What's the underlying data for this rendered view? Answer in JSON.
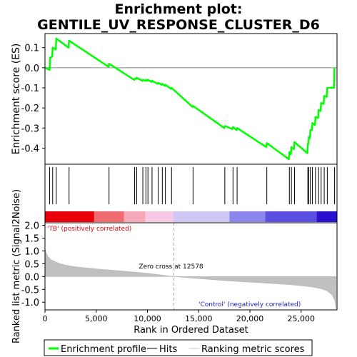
{
  "title_line1": "Enrichment plot:",
  "title_line2": "GENTILE_UV_RESPONSE_CLUSTER_D6",
  "chart_data": [
    {
      "type": "line",
      "panel": "enrichment",
      "ylabel": "Enrichment score (ES)",
      "xlim": [
        0,
        28500
      ],
      "ylim": [
        -0.48,
        0.17
      ],
      "yticks": [
        0.1,
        0.0,
        -0.1,
        -0.2,
        -0.3,
        -0.4
      ],
      "ytick_labels": [
        "0.1",
        "0.0",
        "-0.1",
        "-0.2",
        "-0.3",
        "-0.4"
      ],
      "zero_line": true,
      "series": [
        {
          "name": "Enrichment profile",
          "color": "#00ff00",
          "x": [
            0,
            450,
            500,
            700,
            750,
            1050,
            1100,
            2300,
            2350,
            6200,
            6250,
            8700,
            8750,
            8900,
            8950,
            9500,
            9550,
            9800,
            9850,
            10000,
            10050,
            10400,
            10450,
            11000,
            11050,
            11400,
            11450,
            11700,
            11750,
            12300,
            12350,
            14400,
            14450,
            17500,
            17550,
            18300,
            18350,
            18700,
            18750,
            21600,
            21650,
            23800,
            23850,
            24000,
            24050,
            24300,
            24350,
            25600,
            25650,
            25700,
            25750,
            25850,
            25900,
            26050,
            26100,
            26350,
            26400,
            26650,
            26700,
            26900,
            26950,
            27200,
            27250,
            27500,
            27550,
            28200,
            28250
          ],
          "y": [
            0.0,
            -0.01,
            0.05,
            0.055,
            0.1,
            0.09,
            0.145,
            0.1,
            0.135,
            0.005,
            0.02,
            -0.06,
            -0.055,
            -0.055,
            -0.05,
            -0.065,
            -0.06,
            -0.065,
            -0.06,
            -0.065,
            -0.06,
            -0.07,
            -0.065,
            -0.08,
            -0.075,
            -0.085,
            -0.08,
            -0.09,
            -0.085,
            -0.105,
            -0.1,
            -0.195,
            -0.19,
            -0.3,
            -0.29,
            -0.305,
            -0.295,
            -0.31,
            -0.3,
            -0.395,
            -0.375,
            -0.455,
            -0.42,
            -0.43,
            -0.395,
            -0.405,
            -0.37,
            -0.425,
            -0.38,
            -0.38,
            -0.345,
            -0.35,
            -0.31,
            -0.31,
            -0.275,
            -0.285,
            -0.245,
            -0.25,
            -0.21,
            -0.215,
            -0.175,
            -0.18,
            -0.14,
            -0.145,
            -0.1,
            -0.1,
            0.0
          ]
        }
      ]
    },
    {
      "type": "rug",
      "panel": "hits",
      "series_name": "Hits",
      "xlim": [
        0,
        28500
      ],
      "hits": [
        450,
        750,
        1100,
        2350,
        6250,
        8750,
        8950,
        9550,
        9850,
        10050,
        10450,
        11050,
        11450,
        11750,
        12350,
        14450,
        17550,
        18350,
        18750,
        21650,
        23850,
        24050,
        24350,
        25650,
        25750,
        25900,
        26100,
        26400,
        26700,
        26950,
        27250,
        27550,
        28250
      ],
      "heat_colors": [
        "#e8000b",
        "#f06a72",
        "#f4a8b8",
        "#f6c8e6",
        "#d0c8f4",
        "#8a86ec",
        "#5b4fe2",
        "#2a10cf"
      ],
      "heat_breaks": [
        0,
        4800,
        7700,
        9800,
        12500,
        18000,
        21500,
        26500,
        28500
      ]
    },
    {
      "type": "area",
      "panel": "ranking",
      "series_name": "Ranking metric scores",
      "xlabel": "Rank in Ordered Dataset",
      "ylabel": "Ranked list metric (Signal2Noise)",
      "xlim": [
        0,
        28500
      ],
      "ylim": [
        -1.3,
        2.1
      ],
      "xticks": [
        0,
        5000,
        10000,
        15000,
        20000,
        25000
      ],
      "xtick_labels": [
        "0",
        "5,000",
        "10,000",
        "15,000",
        "20,000",
        "25,000"
      ],
      "yticks": [
        2.0,
        1.5,
        1.0,
        0.5,
        0.0,
        -0.5,
        -1.0
      ],
      "ytick_labels": [
        "2.0",
        "1.5",
        "1.0",
        "0.5",
        "0.0",
        "-0.5",
        "-1.0"
      ],
      "x": [
        0,
        100,
        300,
        600,
        1000,
        1500,
        2000,
        3000,
        5000,
        7500,
        10000,
        12578,
        15000,
        18000,
        21000,
        24000,
        26000,
        27000,
        27500,
        28000,
        28300,
        28400
      ],
      "values": [
        1.1,
        0.95,
        0.78,
        0.66,
        0.58,
        0.5,
        0.45,
        0.38,
        0.3,
        0.22,
        0.13,
        0.0,
        -0.08,
        -0.17,
        -0.24,
        -0.32,
        -0.4,
        -0.48,
        -0.55,
        -0.7,
        -0.95,
        -1.25
      ],
      "annotation_zero_cross": "Zero cross at 12578",
      "zero_cross_x": 12578,
      "label_positive": "'TB' (positively correlated)",
      "label_negative": "'Control' (negatively correlated)"
    }
  ],
  "legend": {
    "items": [
      {
        "label": "Enrichment profile",
        "color": "#00ff00"
      },
      {
        "label": "Hits",
        "color": "#000000"
      },
      {
        "label": "Ranking metric scores",
        "color": "#c0c0c0"
      }
    ]
  }
}
